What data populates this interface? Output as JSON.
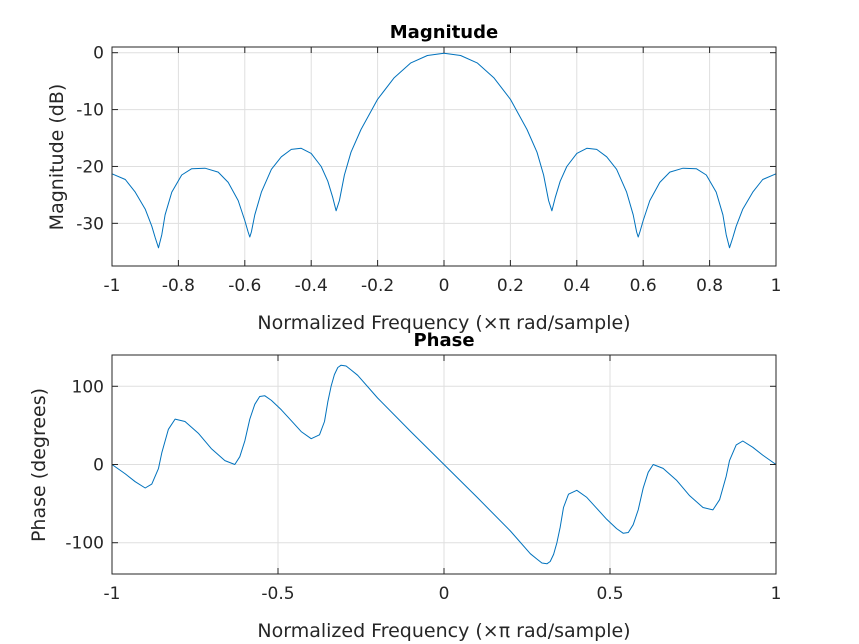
{
  "chart_data": [
    {
      "type": "line",
      "title": "Magnitude",
      "xlabel": "Normalized Frequency  (×π rad/sample)",
      "ylabel": "Magnitude (dB)",
      "xlim": [
        -1,
        1
      ],
      "ylim": [
        -37.5,
        1
      ],
      "xticks": [
        -1,
        -0.8,
        -0.6,
        -0.4,
        -0.2,
        0,
        0.2,
        0.4,
        0.6,
        0.8,
        1
      ],
      "xtick_labels": [
        "-1",
        "-0.8",
        "-0.6",
        "-0.4",
        "-0.2",
        "0",
        "0.2",
        "0.4",
        "0.6",
        "0.8",
        "1"
      ],
      "yticks": [
        0,
        -10,
        -20,
        -30
      ],
      "ytick_labels": [
        "0",
        "-10",
        "-20",
        "-30"
      ],
      "grid": true,
      "series": [
        {
          "color": "#0072bd",
          "x": [
            -1,
            -0.96,
            -0.93,
            -0.9,
            -0.88,
            -0.87,
            -0.86,
            -0.85,
            -0.84,
            -0.82,
            -0.79,
            -0.76,
            -0.72,
            -0.68,
            -0.65,
            -0.62,
            -0.6,
            -0.59,
            -0.585,
            -0.58,
            -0.57,
            -0.55,
            -0.52,
            -0.49,
            -0.46,
            -0.43,
            -0.4,
            -0.37,
            -0.35,
            -0.335,
            -0.325,
            -0.315,
            -0.3,
            -0.28,
            -0.25,
            -0.2,
            -0.15,
            -0.1,
            -0.05,
            0,
            0.05,
            0.1,
            0.15,
            0.2,
            0.25,
            0.28,
            0.3,
            0.315,
            0.325,
            0.335,
            0.35,
            0.37,
            0.4,
            0.43,
            0.46,
            0.49,
            0.52,
            0.55,
            0.57,
            0.58,
            0.585,
            0.59,
            0.6,
            0.62,
            0.65,
            0.68,
            0.72,
            0.76,
            0.79,
            0.82,
            0.84,
            0.85,
            0.86,
            0.87,
            0.88,
            0.9,
            0.93,
            0.96,
            1
          ],
          "y": [
            -21.3,
            -22.3,
            -24.5,
            -27.5,
            -30.5,
            -32.5,
            -34.3,
            -32.0,
            -28.5,
            -24.5,
            -21.5,
            -20.4,
            -20.3,
            -21.0,
            -22.8,
            -26.0,
            -29.5,
            -31.5,
            -32.4,
            -31.5,
            -28.5,
            -24.5,
            -20.5,
            -18.3,
            -17.0,
            -16.8,
            -17.7,
            -20.0,
            -22.6,
            -25.5,
            -27.8,
            -26.0,
            -21.5,
            -17.5,
            -13.5,
            -8.2,
            -4.4,
            -1.8,
            -0.5,
            -0.1,
            -0.5,
            -1.8,
            -4.4,
            -8.2,
            -13.5,
            -17.5,
            -21.5,
            -26.0,
            -27.8,
            -25.5,
            -22.6,
            -20.0,
            -17.7,
            -16.8,
            -17.0,
            -18.3,
            -20.5,
            -24.5,
            -28.5,
            -31.5,
            -32.4,
            -31.5,
            -29.5,
            -26.0,
            -22.8,
            -21.0,
            -20.3,
            -20.4,
            -21.5,
            -24.5,
            -28.5,
            -32.0,
            -34.3,
            -32.5,
            -30.5,
            -27.5,
            -24.5,
            -22.3,
            -21.3
          ]
        }
      ]
    },
    {
      "type": "line",
      "title": "Phase",
      "xlabel": "Normalized Frequency  (×π rad/sample)",
      "ylabel": "Phase (degrees)",
      "xlim": [
        -1,
        1
      ],
      "ylim": [
        -140,
        140
      ],
      "xticks": [
        -1,
        -0.5,
        0,
        0.5,
        1
      ],
      "xtick_labels": [
        "-1",
        "-0.5",
        "0",
        "0.5",
        "1"
      ],
      "yticks": [
        100,
        0,
        -100
      ],
      "ytick_labels": [
        "100",
        "0",
        "-100"
      ],
      "grid": true,
      "series": [
        {
          "color": "#0072bd",
          "x": [
            -1,
            -0.96,
            -0.93,
            -0.9,
            -0.88,
            -0.86,
            -0.85,
            -0.83,
            -0.81,
            -0.78,
            -0.74,
            -0.7,
            -0.66,
            -0.63,
            -0.615,
            -0.6,
            -0.585,
            -0.57,
            -0.555,
            -0.54,
            -0.52,
            -0.49,
            -0.46,
            -0.43,
            -0.4,
            -0.375,
            -0.36,
            -0.35,
            -0.34,
            -0.33,
            -0.32,
            -0.31,
            -0.295,
            -0.28,
            -0.26,
            -0.2,
            -0.1,
            0,
            0.1,
            0.2,
            0.26,
            0.28,
            0.295,
            0.31,
            0.32,
            0.33,
            0.34,
            0.35,
            0.36,
            0.375,
            0.4,
            0.43,
            0.46,
            0.49,
            0.52,
            0.54,
            0.555,
            0.57,
            0.585,
            0.6,
            0.615,
            0.63,
            0.66,
            0.7,
            0.74,
            0.78,
            0.81,
            0.83,
            0.85,
            0.86,
            0.88,
            0.9,
            0.93,
            0.96,
            1
          ],
          "y": [
            0,
            -12,
            -22,
            -30,
            -25,
            -5,
            15,
            45,
            58,
            55,
            40,
            20,
            5,
            0,
            10,
            30,
            58,
            77,
            87,
            88,
            82,
            70,
            56,
            42,
            33,
            38,
            55,
            80,
            100,
            115,
            124,
            127,
            126,
            121,
            114,
            85,
            42,
            0,
            -42,
            -85,
            -114,
            -121,
            -126,
            -127,
            -124,
            -115,
            -100,
            -80,
            -55,
            -38,
            -33,
            -42,
            -56,
            -70,
            -82,
            -88,
            -87,
            -77,
            -58,
            -30,
            -10,
            0,
            -5,
            -20,
            -40,
            -55,
            -58,
            -45,
            -15,
            5,
            25,
            30,
            22,
            12,
            0
          ]
        }
      ]
    }
  ]
}
